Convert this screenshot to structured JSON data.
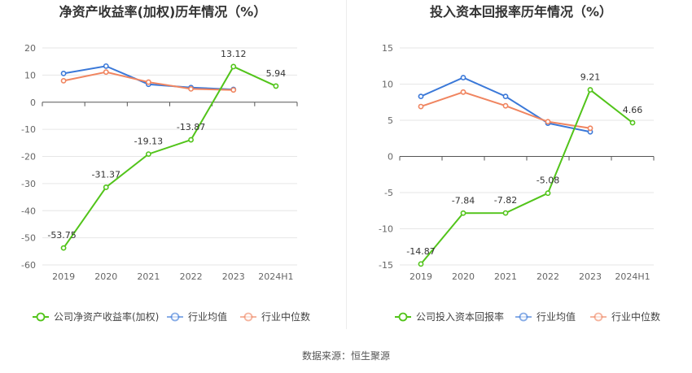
{
  "footer": {
    "source": "数据来源：恒生聚源"
  },
  "chart_data": [
    {
      "type": "line",
      "title": "净资产收益率(加权)历年情况（%）",
      "categories": [
        "2019",
        "2020",
        "2021",
        "2022",
        "2023",
        "2024H1"
      ],
      "yticks": [
        20,
        10,
        0,
        -10,
        -20,
        -30,
        -40,
        -50,
        -60
      ],
      "ylim": [
        -60,
        20
      ],
      "grid": true,
      "legend_position": "bottom",
      "series": [
        {
          "name": "公司净资产收益率(加权)",
          "color": "#52c41a",
          "show_labels": true,
          "values": [
            -53.75,
            -31.37,
            -19.13,
            -13.87,
            13.12,
            5.94
          ],
          "labels": [
            "-53.75",
            "-31.37",
            "-19.13",
            "-13.87",
            "13.12",
            "5.94"
          ]
        },
        {
          "name": "行业均值",
          "color": "#3a78d8",
          "show_labels": false,
          "values": [
            10.6,
            13.3,
            6.6,
            5.4,
            4.7,
            null
          ]
        },
        {
          "name": "行业中位数",
          "color": "#f08560",
          "show_labels": false,
          "values": [
            7.9,
            11.1,
            7.4,
            4.9,
            4.5,
            null
          ]
        }
      ]
    },
    {
      "type": "line",
      "title": "投入资本回报率历年情况（%）",
      "categories": [
        "2019",
        "2020",
        "2021",
        "2022",
        "2023",
        "2024H1"
      ],
      "yticks": [
        15,
        10,
        5,
        0,
        -5,
        -10,
        -15
      ],
      "ylim": [
        -15,
        15
      ],
      "grid": true,
      "legend_position": "bottom",
      "series": [
        {
          "name": "公司投入资本回报率",
          "color": "#52c41a",
          "show_labels": true,
          "values": [
            -14.87,
            -7.84,
            -7.82,
            -5.08,
            9.21,
            4.66
          ],
          "labels": [
            "-14.87",
            "-7.84",
            "-7.82",
            "-5.08",
            "9.21",
            "4.66"
          ]
        },
        {
          "name": "行业均值",
          "color": "#3a78d8",
          "show_labels": false,
          "values": [
            8.3,
            10.9,
            8.3,
            4.6,
            3.4,
            null
          ]
        },
        {
          "name": "行业中位数",
          "color": "#f08560",
          "show_labels": false,
          "values": [
            6.9,
            8.9,
            7.0,
            4.8,
            3.9,
            null
          ]
        }
      ]
    }
  ]
}
